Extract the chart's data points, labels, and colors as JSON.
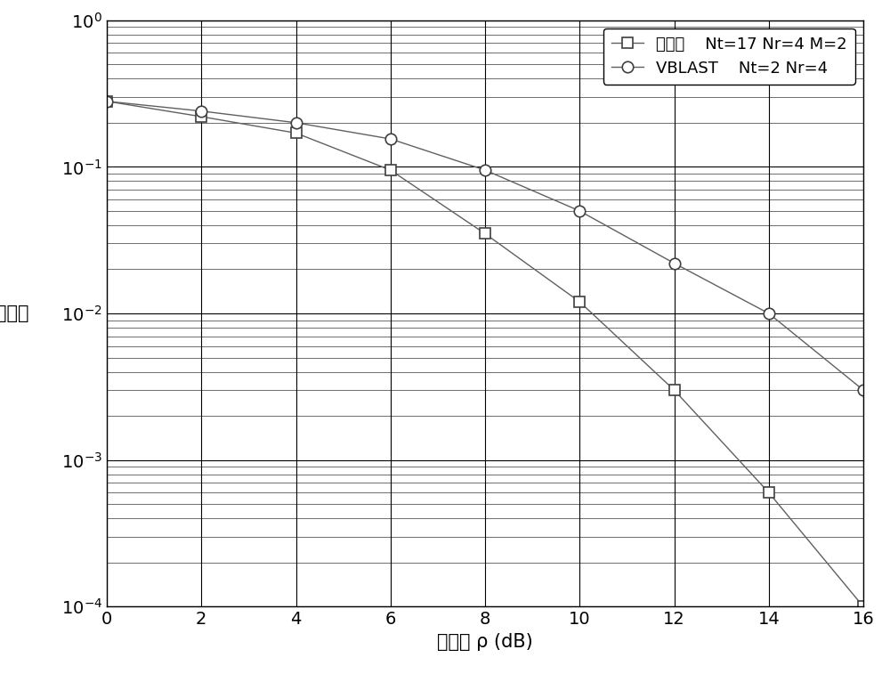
{
  "invention_x": [
    0,
    2,
    4,
    6,
    8,
    10,
    12,
    14,
    16
  ],
  "invention_y": [
    0.28,
    0.22,
    0.17,
    0.095,
    0.035,
    0.012,
    0.003,
    0.0006,
    0.0001
  ],
  "vblast_x": [
    0,
    2,
    4,
    6,
    8,
    10,
    12,
    14,
    16
  ],
  "vblast_y": [
    0.28,
    0.24,
    0.2,
    0.155,
    0.095,
    0.05,
    0.022,
    0.01,
    0.003
  ],
  "line_color": "#606060",
  "marker_color": "#404040",
  "xlabel": "信噪比 ρ (dB)",
  "ylabel": "误码率",
  "legend1": "本发明    Nt=17 Nr=4 M=2",
  "legend2": "VBLAST    Nt=2 Nr=4",
  "xlim": [
    0,
    16
  ],
  "ylim_log": [
    0.0001,
    1.0
  ],
  "xticks": [
    0,
    2,
    4,
    6,
    8,
    10,
    12,
    14,
    16
  ],
  "xlabel_fontsize": 15,
  "ylabel_fontsize": 15,
  "legend_fontsize": 13,
  "tick_fontsize": 14,
  "figsize": [
    10.0,
    7.57
  ],
  "dpi": 100,
  "background_color": "#ffffff",
  "major_grid_color": "#000000",
  "minor_grid_color": "#000000",
  "major_grid_lw": 0.8,
  "minor_grid_lw": 0.4
}
